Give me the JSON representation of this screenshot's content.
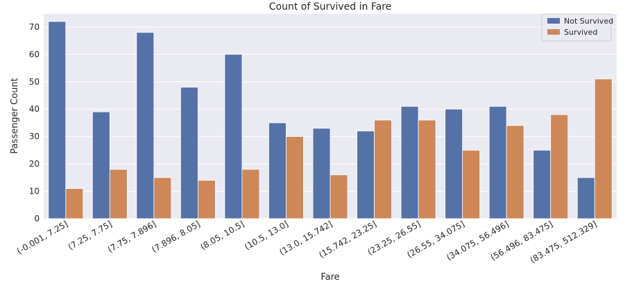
{
  "chart_data": {
    "type": "bar",
    "title": "Count of Survived in Fare",
    "xlabel": "Fare",
    "ylabel": "Passenger Count",
    "ylim": [
      0,
      75
    ],
    "yticks": [
      0,
      10,
      20,
      30,
      40,
      50,
      60,
      70
    ],
    "grid": true,
    "legend_position": "top-right",
    "categories": [
      "(-0.001, 7.25]",
      "(7.25, 7.75]",
      "(7.75, 7.896]",
      "(7.896, 8.05]",
      "(8.05, 10.5]",
      "(10.5, 13.0]",
      "(13.0, 15.742]",
      "(15.742, 23.25]",
      "(23.25, 26.55]",
      "(26.55, 34.075]",
      "(34.075, 56.496]",
      "(56.496, 83.475]",
      "(83.475, 512.329]"
    ],
    "series": [
      {
        "name": "Not Survived",
        "color": "#5572a6",
        "values": [
          72,
          39,
          68,
          48,
          60,
          35,
          33,
          32,
          41,
          40,
          41,
          25,
          15
        ]
      },
      {
        "name": "Survived",
        "color": "#cd8759",
        "values": [
          11,
          18,
          15,
          14,
          18,
          30,
          16,
          36,
          36,
          25,
          34,
          38,
          51
        ]
      }
    ]
  }
}
